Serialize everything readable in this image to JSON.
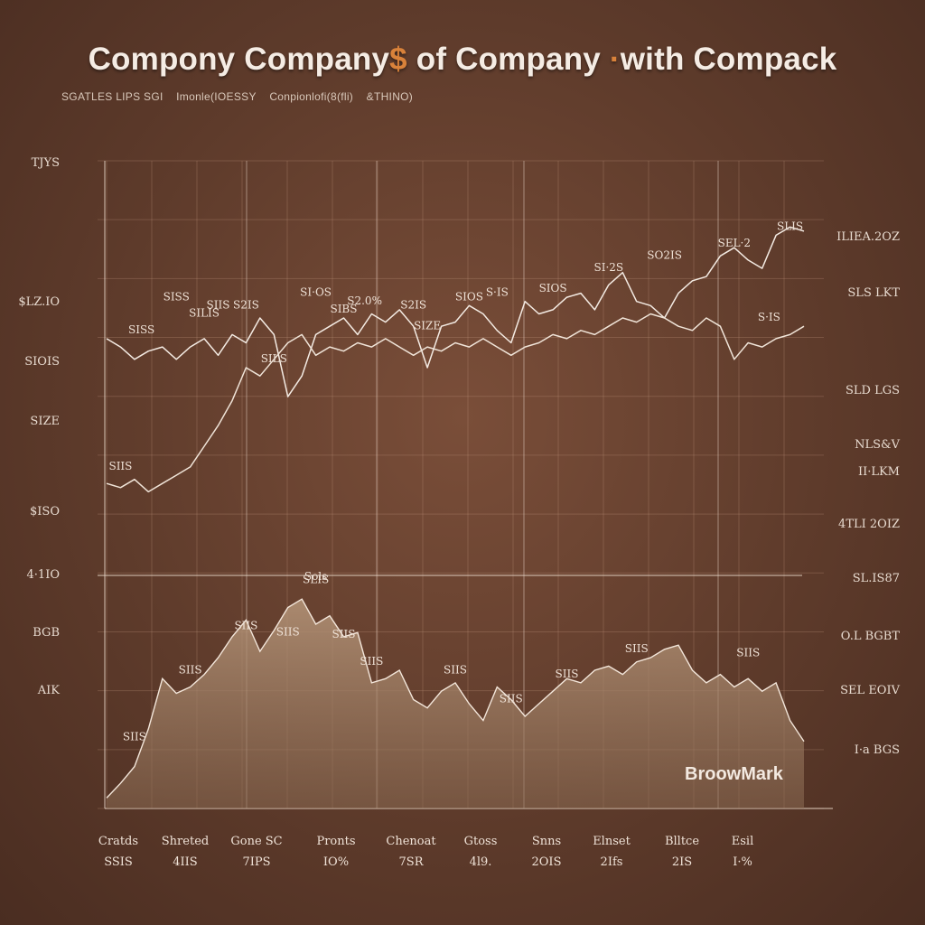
{
  "chart_data": {
    "type": "line",
    "title": {
      "part1": "Compony Company",
      "accent": "$",
      "part2": " of Company ",
      "accent2": "·",
      "part3": "with Compack"
    },
    "subtitle": [
      "SGATLES LIPS SGI",
      "Imonle(IOESSY",
      "Conpionlofi(8(fli)",
      "&THINO)"
    ],
    "y_axis_left_labels": [
      "TJYS",
      "$LZ.IO",
      "SIOIS",
      "SIZE",
      "$ISO",
      "4·1IO",
      "BGB",
      "AIK"
    ],
    "y_axis_right_labels": [
      "ILIEA.2OZ",
      "SLS LKT",
      "SLD LGS",
      "NLS&V",
      "II·LKM",
      "4TLI 2OIZ",
      "SL.IS87",
      "O.L BGBT",
      "SEL EOIV",
      "I·a BGS"
    ],
    "categories": [
      "Cratds",
      "Shreted",
      "Gone SC",
      "Pronts",
      "Chenoat",
      "Gtoss",
      "Snns",
      "Elnset",
      "Blltce",
      "Esil"
    ],
    "category_values": [
      "SSIS",
      "4IIS",
      "7IPS",
      "IO%",
      "7SR",
      "4l9.",
      "2OIS",
      "2Ifs",
      "2IS",
      "I·%"
    ],
    "series": [
      {
        "x": [
          0,
          2,
          4,
          6,
          8,
          10,
          12,
          14,
          16,
          18,
          20,
          22,
          24,
          26,
          28,
          30,
          32,
          34,
          36,
          38,
          40,
          42,
          44,
          46,
          48,
          50,
          52,
          54,
          56,
          58,
          60,
          62,
          64,
          66,
          68,
          70,
          72,
          74,
          76,
          78,
          80,
          82,
          84,
          86,
          88,
          90,
          92,
          94,
          96,
          98,
          100
        ],
        "values": [
          57,
          55,
          52,
          54,
          55,
          52,
          55,
          57,
          53,
          58,
          56,
          62,
          58,
          43,
          48,
          58,
          60,
          62,
          58,
          63,
          61,
          64,
          60,
          50,
          60,
          61,
          65,
          63,
          59,
          56,
          66,
          63,
          64,
          67,
          68,
          64,
          70,
          73,
          66,
          65,
          62,
          68,
          71,
          72,
          77,
          79,
          76,
          74,
          82,
          84,
          83
        ],
        "labels": [
          {
            "x": 5,
            "y": 57,
            "text": "SISS"
          },
          {
            "x": 10,
            "y": 65,
            "text": "SISS"
          },
          {
            "x": 14,
            "y": 61,
            "text": "SILIS"
          },
          {
            "x": 20,
            "y": 63,
            "text": "S2IS"
          },
          {
            "x": 30,
            "y": 66,
            "text": "SI·OS"
          },
          {
            "x": 37,
            "y": 64,
            "text": "S2.0%"
          },
          {
            "x": 44,
            "y": 63,
            "text": "S2IS"
          },
          {
            "x": 52,
            "y": 65,
            "text": "SIOS"
          },
          {
            "x": 56,
            "y": 66,
            "text": "S·IS"
          },
          {
            "x": 64,
            "y": 67,
            "text": "SIOS"
          },
          {
            "x": 72,
            "y": 72,
            "text": "SI·2S"
          },
          {
            "x": 80,
            "y": 75,
            "text": "SO2IS"
          },
          {
            "x": 90,
            "y": 78,
            "text": "SEL·2"
          },
          {
            "x": 98,
            "y": 82,
            "text": "SLIS"
          }
        ]
      },
      {
        "x": [
          0,
          2,
          4,
          6,
          8,
          10,
          12,
          14,
          16,
          18,
          20,
          22,
          24,
          26,
          28,
          30,
          32,
          34,
          36,
          38,
          40,
          42,
          44,
          46,
          48,
          50,
          52,
          54,
          56,
          58,
          60,
          62,
          64,
          66,
          68,
          70,
          72,
          74,
          76,
          78,
          80,
          82,
          84,
          86,
          88,
          90,
          92,
          94,
          96,
          98,
          100
        ],
        "values": [
          22,
          21,
          23,
          20,
          22,
          24,
          26,
          31,
          36,
          42,
          50,
          48,
          52,
          56,
          58,
          53,
          55,
          54,
          56,
          55,
          57,
          55,
          53,
          55,
          54,
          56,
          55,
          57,
          55,
          53,
          55,
          56,
          58,
          57,
          59,
          58,
          60,
          62,
          61,
          63,
          62,
          60,
          59,
          62,
          60,
          52,
          56,
          55,
          57,
          58,
          60
        ],
        "labels": [
          {
            "x": 2,
            "y": 24,
            "text": "SIIS"
          },
          {
            "x": 16,
            "y": 63,
            "text": "SIIS"
          },
          {
            "x": 24,
            "y": 50,
            "text": "SILS"
          },
          {
            "x": 34,
            "y": 62,
            "text": "SIBS"
          },
          {
            "x": 46,
            "y": 58,
            "text": "SIZE"
          },
          {
            "x": 95,
            "y": 60,
            "text": "S·IS"
          }
        ]
      }
    ],
    "volume_series": {
      "x": [
        0,
        2,
        4,
        6,
        8,
        10,
        12,
        14,
        16,
        18,
        20,
        22,
        24,
        26,
        28,
        30,
        32,
        34,
        36,
        38,
        40,
        42,
        44,
        46,
        48,
        50,
        52,
        54,
        56,
        58,
        60,
        62,
        64,
        66,
        68,
        70,
        72,
        74,
        76,
        78,
        80,
        82,
        84,
        86,
        88,
        90,
        92,
        94,
        96,
        98,
        100
      ],
      "values": [
        5,
        12,
        20,
        38,
        62,
        55,
        58,
        64,
        72,
        82,
        90,
        75,
        85,
        96,
        100,
        88,
        92,
        82,
        84,
        60,
        62,
        66,
        52,
        48,
        56,
        60,
        50,
        42,
        58,
        52,
        44,
        50,
        56,
        62,
        60,
        66,
        68,
        64,
        70,
        72,
        76,
        78,
        66,
        60,
        64,
        58,
        62,
        56,
        60,
        42,
        32
      ],
      "labels": [
        {
          "x": 4,
          "y": 30,
          "text": "SIIS"
        },
        {
          "x": 12,
          "y": 62,
          "text": "SIIS"
        },
        {
          "x": 20,
          "y": 83,
          "text": "SIIS"
        },
        {
          "x": 26,
          "y": 80,
          "text": "SIIS"
        },
        {
          "x": 30,
          "y": 105,
          "text": "SLIS"
        },
        {
          "x": 34,
          "y": 79,
          "text": "SIIS"
        },
        {
          "x": 38,
          "y": 66,
          "text": "SIIS"
        },
        {
          "x": 50,
          "y": 62,
          "text": "SIIS"
        },
        {
          "x": 58,
          "y": 48,
          "text": "SIIS"
        },
        {
          "x": 66,
          "y": 60,
          "text": "SIIS"
        },
        {
          "x": 76,
          "y": 72,
          "text": "SIIS"
        },
        {
          "x": 92,
          "y": 70,
          "text": "SIIS"
        }
      ]
    },
    "peak_label": {
      "text": "Sols"
    },
    "brand_label": "BroowMark",
    "grid": true
  }
}
